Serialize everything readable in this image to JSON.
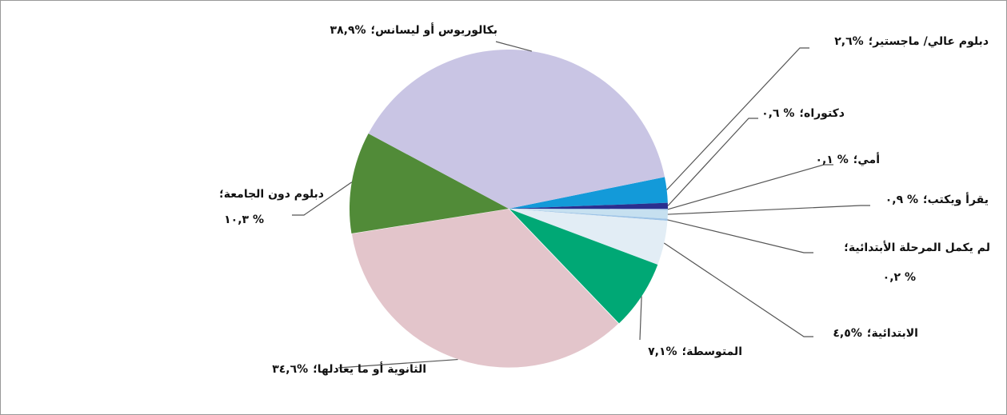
{
  "chart_data": {
    "type": "pie",
    "categories": [
      "دبلوم عالي/ ماجستير؛",
      "دكتوراه؛",
      "أمي؛",
      "يقرأ ويكتب؛",
      "لم يكمل المرحلة الأبتدائية؛",
      "الابتدائية؛",
      "المتوسطة؛",
      "الثانوية أو ما يعادلها؛",
      "دبلوم دون الجامعة؛",
      "بكالوريوس أو ليسانس؛"
    ],
    "values": [
      2.6,
      0.6,
      0.1,
      0.9,
      0.2,
      4.5,
      7.1,
      34.6,
      10.3,
      38.9
    ],
    "value_labels": [
      "٢,٦%",
      "٠,٦ %",
      "٠,١ %",
      "٠,٩ %",
      "٠,٢ %",
      "٤,٥%",
      "٧,١%",
      "٣٤,٦%",
      "١٠,٣ %",
      "٣٨,٩%"
    ],
    "colors": [
      "#139ad9",
      "#2b2f8f",
      "#5b9bd5",
      "#c6e0f0",
      "#9dc3e6",
      "#e2edf5",
      "#00a875",
      "#e3c5cb",
      "#518b38",
      "#c9c5e4"
    ]
  }
}
